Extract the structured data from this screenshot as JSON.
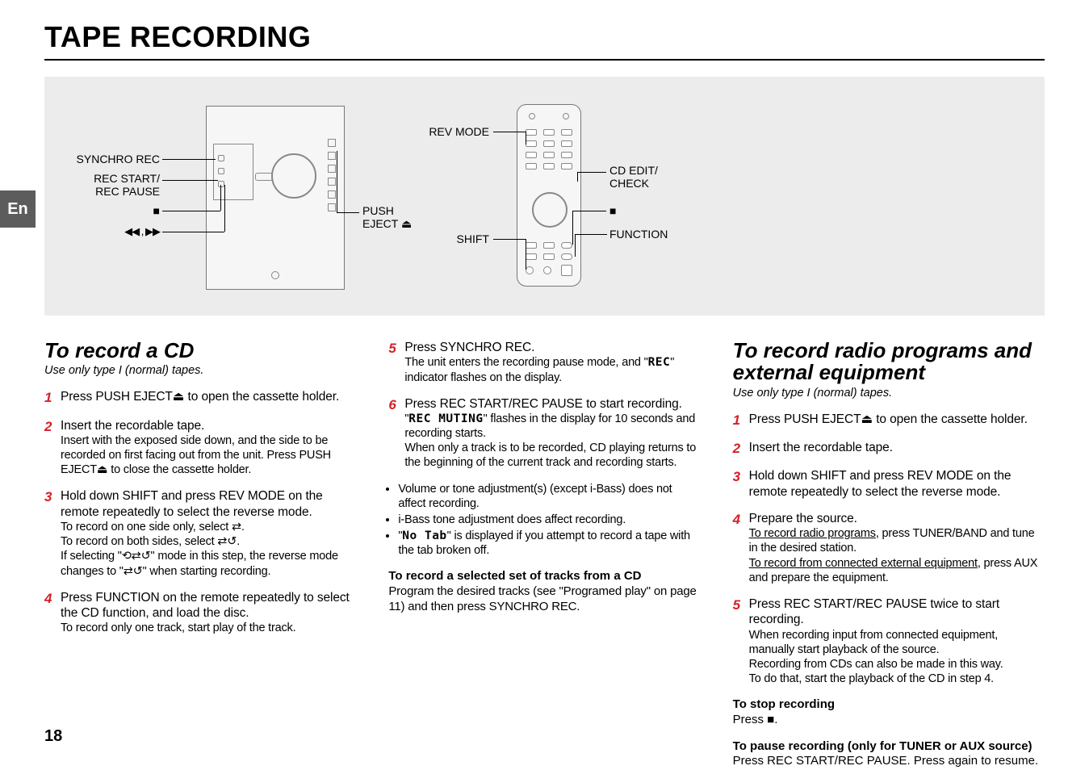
{
  "page": {
    "title": "TAPE RECORDING",
    "lang_tab": "En",
    "page_number": "18"
  },
  "diagram": {
    "bg": "#ececec",
    "labels_left": {
      "synchro_rec": "SYNCHRO REC",
      "rec_start_pause_l1": "REC START/",
      "rec_start_pause_l2": "REC PAUSE",
      "stop": "■",
      "ffrw": "◀◀ , ▶▶"
    },
    "labels_mid": {
      "push": "PUSH",
      "eject": "EJECT ⏏"
    },
    "labels_right_in": {
      "rev_mode": "REV MODE",
      "shift": "SHIFT"
    },
    "labels_right_out": {
      "cd_edit_l1": "CD EDIT/",
      "cd_edit_l2": "CHECK",
      "stop": "■",
      "function": "FUNCTION"
    }
  },
  "col1": {
    "heading": "To record a CD",
    "sub": "Use only type I (normal) tapes.",
    "steps": [
      {
        "n": "1",
        "main": "Press PUSH EJECT⏏ to open the cassette holder."
      },
      {
        "n": "2",
        "main": "Insert the recordable tape.",
        "light": "Insert with the exposed side down, and the side to be recorded on first facing out from the unit. Press PUSH EJECT⏏ to close the cassette holder."
      },
      {
        "n": "3",
        "main": "Hold down SHIFT and press REV MODE on the remote repeatedly to select the reverse mode.",
        "light": "To record on one side only, select ⇄.\nTo record on both sides, select ⇄↺.\nIf selecting \"⟲⇄↺\" mode in this step, the reverse mode changes to \"⇄↺\" when starting recording."
      },
      {
        "n": "4",
        "main": "Press FUNCTION on the remote repeatedly to select the CD function, and load the disc.",
        "light": "To record only one track, start play of the track."
      }
    ]
  },
  "col2": {
    "steps": [
      {
        "n": "5",
        "main": "Press SYNCHRO REC.",
        "light_pre": "The unit enters the recording pause mode, and \"",
        "lcd": "REC",
        "light_post": "\" indicator flashes on the display."
      },
      {
        "n": "6",
        "main": "Press REC START/REC PAUSE to start recording.",
        "light_pre": "\"",
        "lcd": "REC MUTING",
        "light_post": "\" flashes in the display for 10 seconds and recording starts.\nWhen only a track is to be recorded, CD playing returns to the beginning of the current track and recording starts."
      }
    ],
    "bullets": [
      "Volume or tone adjustment(s) (except i-Bass) does not affect recording.",
      "i-Bass tone adjustment does affect recording."
    ],
    "bullet3_pre": "\"",
    "bullet3_lcd": "No Tab",
    "bullet3_post": "\" is displayed if you attempt to record a tape with the tab broken off.",
    "sel_head": "To record a selected set of tracks from a CD",
    "sel_body": "Program the desired tracks (see \"Programed play\" on page 11) and then press SYNCHRO REC."
  },
  "col3": {
    "heading_l1": "To record radio programs and",
    "heading_l2": "external equipment",
    "sub": "Use only type I (normal) tapes.",
    "steps": [
      {
        "n": "1",
        "main": "Press PUSH EJECT⏏ to open the cassette holder."
      },
      {
        "n": "2",
        "main": "Insert the recordable tape."
      },
      {
        "n": "3",
        "main": "Hold down SHIFT and press REV MODE on the remote repeatedly to select the reverse mode."
      },
      {
        "n": "4",
        "main": "Prepare the source.",
        "light": "<u>To record radio programs</u>, press TUNER/BAND and tune in the desired station.\n<u>To record from connected external equipment</u>, press AUX and prepare the equipment."
      },
      {
        "n": "5",
        "main": "Press REC START/REC PAUSE twice to start recording.",
        "light": "When recording input from connected equipment, manually start playback of the source.\nRecording from CDs can also be made in this way.\nTo do that, start the playback of the CD in step 4."
      }
    ],
    "stop_head": "To stop recording",
    "stop_body": "Press ■.",
    "pause_head": "To pause recording (only for TUNER or AUX source)",
    "pause_body": "Press REC START/REC PAUSE. Press again to resume."
  }
}
